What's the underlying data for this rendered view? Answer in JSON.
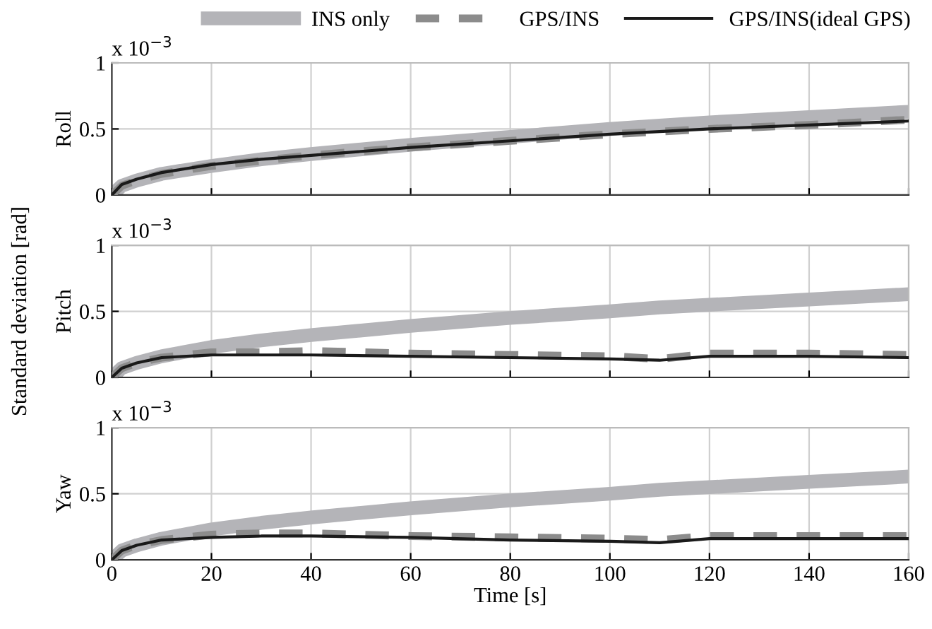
{
  "chart_data": [
    {
      "type": "line",
      "ylabel": "Roll",
      "annotations": [
        "x 10$^{−3}$"
      ],
      "legend": "top",
      "grid": true,
      "tick_labels": "y",
      "xlim": [
        0,
        160
      ],
      "xticks": [
        0,
        20,
        40,
        60,
        80,
        100,
        120,
        140,
        160
      ],
      "ylim": [
        0,
        1
      ],
      "yticks": [
        0,
        0.5,
        1
      ],
      "x": [
        0,
        2,
        5,
        10,
        20,
        30,
        40,
        60,
        80,
        100,
        110,
        120,
        140,
        160
      ],
      "series": [
        {
          "name": "INS only",
          "color": "#b4b4b8",
          "line_style": "solid",
          "values": [
            0,
            0.07,
            0.11,
            0.16,
            0.22,
            0.27,
            0.31,
            0.38,
            0.44,
            0.5,
            0.525,
            0.55,
            0.59,
            0.63
          ]
        },
        {
          "name": "GPS/INS",
          "color": "#8c8c8c",
          "line_style": "dashed",
          "values": [
            0,
            0.07,
            0.11,
            0.16,
            0.22,
            0.26,
            0.3,
            0.36,
            0.41,
            0.46,
            0.48,
            0.5,
            0.53,
            0.57
          ]
        },
        {
          "name": "GPS/INS(ideal GPS)",
          "color": "#1a1a1a",
          "line_style": "solid",
          "values": [
            0,
            0.08,
            0.12,
            0.17,
            0.23,
            0.27,
            0.3,
            0.36,
            0.41,
            0.46,
            0.48,
            0.5,
            0.53,
            0.56
          ]
        }
      ]
    },
    {
      "type": "line",
      "ylabel": "Pitch",
      "annotations": [
        "x 10$^{−3}$",
        "Standard deviation [rad]"
      ],
      "grid": true,
      "tick_labels": "y",
      "xlim": [
        0,
        160
      ],
      "xticks": [
        0,
        20,
        40,
        60,
        80,
        100,
        120,
        140,
        160
      ],
      "ylim": [
        0,
        1
      ],
      "yticks": [
        0,
        0.5,
        1
      ],
      "x": [
        0,
        2,
        5,
        10,
        20,
        30,
        40,
        60,
        80,
        100,
        110,
        120,
        140,
        160
      ],
      "series": [
        {
          "color": "#b4b4b8",
          "line_style": "solid",
          "values": [
            0,
            0.07,
            0.11,
            0.16,
            0.23,
            0.28,
            0.32,
            0.39,
            0.45,
            0.5,
            0.53,
            0.55,
            0.59,
            0.63
          ]
        },
        {
          "color": "#8c8c8c",
          "line_style": "dashed",
          "values": [
            0,
            0.07,
            0.11,
            0.15,
            0.19,
            0.19,
            0.2,
            0.18,
            0.17,
            0.16,
            0.14,
            0.18,
            0.18,
            0.17
          ]
        },
        {
          "color": "#1a1a1a",
          "line_style": "solid",
          "values": [
            0,
            0.07,
            0.11,
            0.15,
            0.17,
            0.17,
            0.17,
            0.16,
            0.15,
            0.14,
            0.13,
            0.16,
            0.16,
            0.15
          ]
        }
      ]
    },
    {
      "type": "line",
      "ylabel": "Yaw",
      "xlabel": "Time [s]",
      "annotations": [
        "x 10$^{−3}$"
      ],
      "grid": true,
      "xlim": [
        0,
        160
      ],
      "xticks": [
        0,
        20,
        40,
        60,
        80,
        100,
        120,
        140,
        160
      ],
      "ylim": [
        0,
        1
      ],
      "yticks": [
        0,
        0.5,
        1
      ],
      "x": [
        0,
        2,
        5,
        10,
        20,
        30,
        40,
        60,
        80,
        100,
        110,
        120,
        140,
        160
      ],
      "series": [
        {
          "color": "#b4b4b8",
          "line_style": "solid",
          "values": [
            0,
            0.07,
            0.11,
            0.16,
            0.23,
            0.28,
            0.32,
            0.39,
            0.45,
            0.5,
            0.53,
            0.55,
            0.59,
            0.63
          ]
        },
        {
          "color": "#8c8c8c",
          "line_style": "dashed",
          "values": [
            0,
            0.07,
            0.11,
            0.15,
            0.19,
            0.2,
            0.2,
            0.18,
            0.17,
            0.16,
            0.15,
            0.18,
            0.18,
            0.18
          ]
        },
        {
          "color": "#1a1a1a",
          "line_style": "solid",
          "values": [
            0,
            0.07,
            0.11,
            0.15,
            0.17,
            0.18,
            0.18,
            0.17,
            0.15,
            0.14,
            0.13,
            0.16,
            0.16,
            0.16
          ]
        }
      ]
    }
  ]
}
